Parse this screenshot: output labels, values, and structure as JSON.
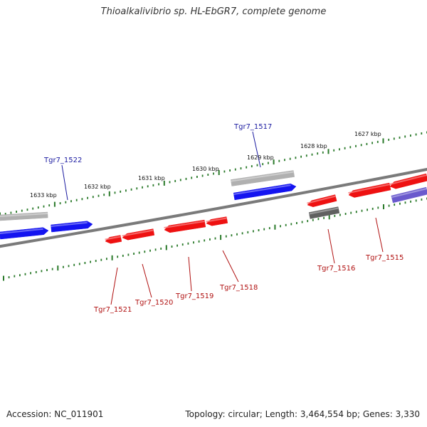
{
  "header": {
    "title": "Thioalkalivibrio sp. HL-EbGR7, complete genome"
  },
  "footer": {
    "accession": "Accession: NC_011901",
    "stats": "Topology: circular; Length: 3,464,554 bp; Genes: 3,330"
  },
  "scale_labels": [
    "1633 kbp",
    "1632 kbp",
    "1631 kbp",
    "1630 kbp",
    "1629 kbp",
    "1628 kbp",
    "1627 kbp"
  ],
  "genes_forward": [
    "Tgr7_1522",
    "Tgr7_1517"
  ],
  "genes_reverse": [
    "Tgr7_1521",
    "Tgr7_1520",
    "Tgr7_1519",
    "Tgr7_1518",
    "Tgr7_1516",
    "Tgr7_1515"
  ],
  "colors": {
    "backbone": "#7a7a7a",
    "forward_cds": "#1414f0",
    "reverse_cds": "#ee1111",
    "rna_gene": "#b0b0b0",
    "dark_gene": "#606060",
    "purple_gene": "#6a5acd",
    "tick": "#2a7a2a",
    "forward_label": "#1a1aa0",
    "reverse_label": "#b01010"
  }
}
